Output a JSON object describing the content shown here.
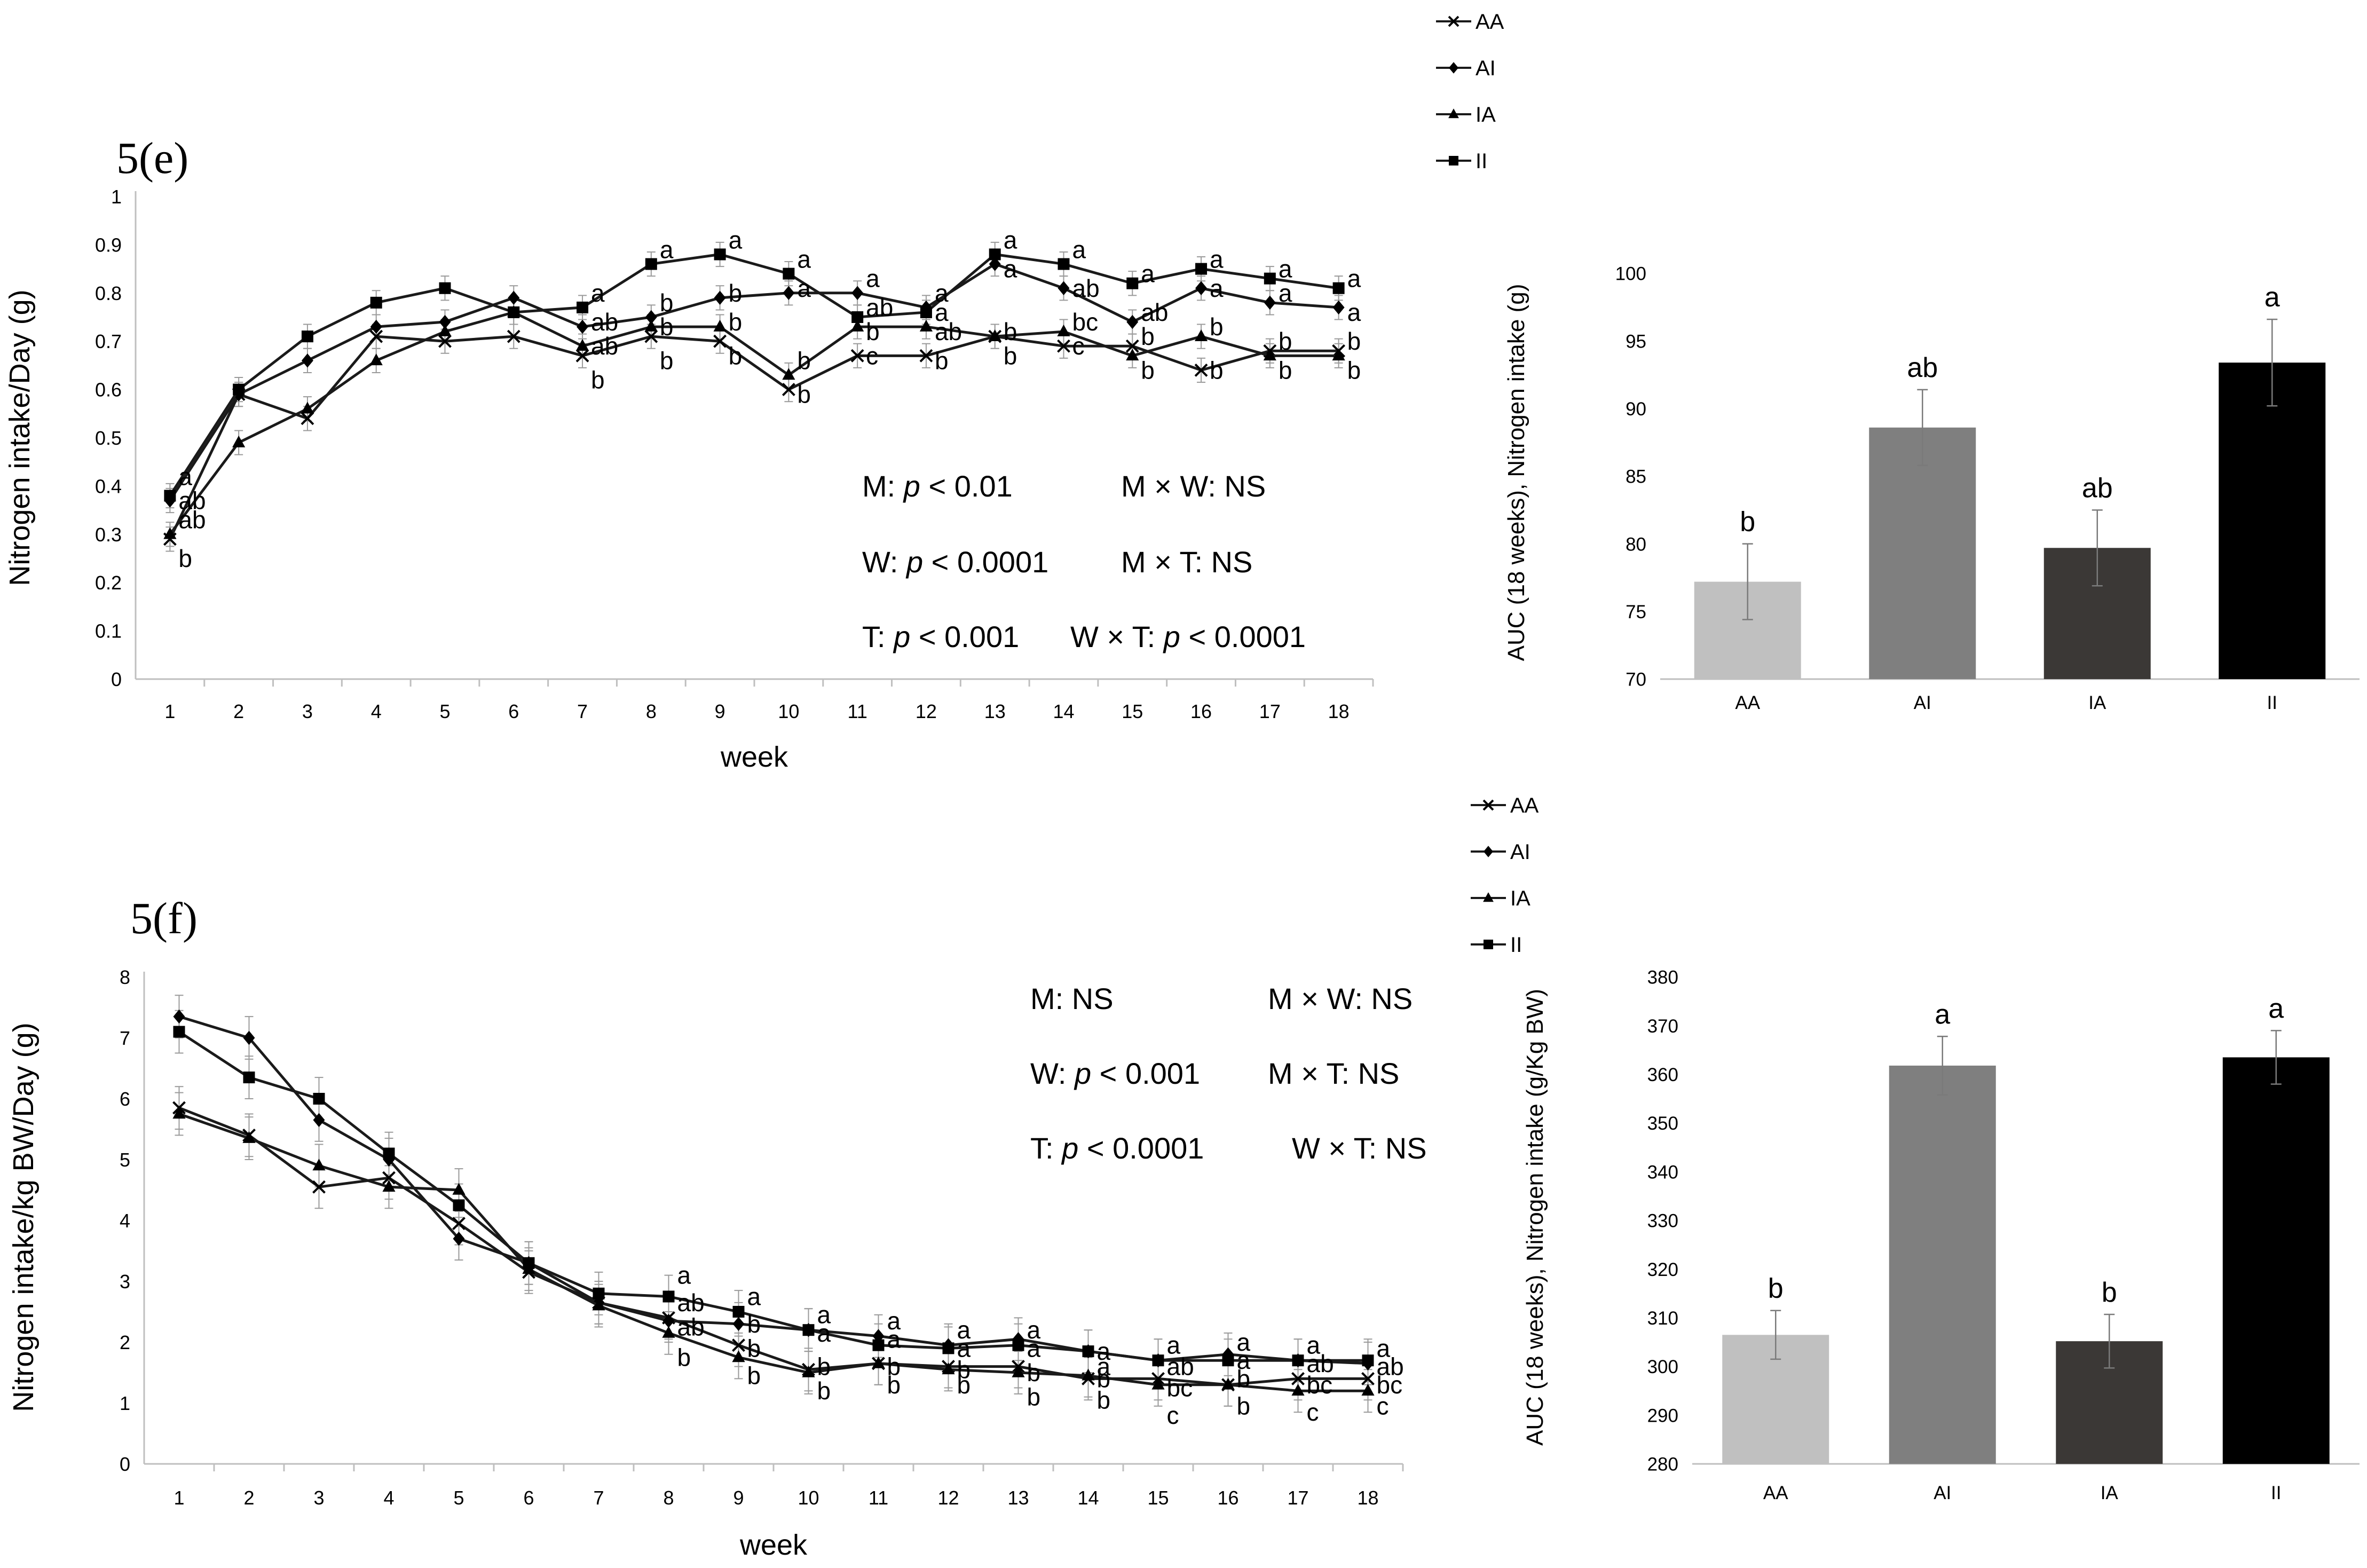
{
  "panels": {
    "e": {
      "label": "5(e)",
      "stats": [
        {
          "pre": "M: ",
          "p": "p",
          "post": " < 0.01"
        },
        {
          "pre": "M × W: NS",
          "p": "",
          "post": ""
        },
        {
          "pre": "W: ",
          "p": "p",
          "post": " < 0.0001"
        },
        {
          "pre": "M × T: NS",
          "p": "",
          "post": ""
        },
        {
          "pre": "T: ",
          "p": "p",
          "post": " < 0.001"
        },
        {
          "pre": "W × T: ",
          "p": "p",
          "post": " < 0.0001"
        }
      ]
    },
    "f": {
      "label": "5(f)",
      "stats": [
        {
          "pre": "M: NS",
          "p": "",
          "post": ""
        },
        {
          "pre": "M × W: NS",
          "p": "",
          "post": ""
        },
        {
          "pre": "W: ",
          "p": "p",
          "post": " < 0.001"
        },
        {
          "pre": "M × T: NS",
          "p": "",
          "post": ""
        },
        {
          "pre": "T: ",
          "p": "p",
          "post": " < 0.0001"
        },
        {
          "pre": "W × T: NS",
          "p": "",
          "post": ""
        }
      ]
    }
  },
  "chart_data": [
    {
      "id": "e-line",
      "type": "line",
      "title": "",
      "xlabel": "week",
      "ylabel": "Nitrogen intake/Day (g)",
      "categories": [
        "1",
        "2",
        "3",
        "4",
        "5",
        "6",
        "7",
        "8",
        "9",
        "10",
        "11",
        "12",
        "13",
        "14",
        "15",
        "16",
        "17",
        "18"
      ],
      "ylim": [
        0,
        1
      ],
      "yticks": [
        "0",
        "0.1",
        "0.2",
        "0.3",
        "0.4",
        "0.5",
        "0.6",
        "0.7",
        "0.8",
        "0.9",
        "1"
      ],
      "legend": "top-right",
      "series": [
        {
          "name": "AA",
          "marker": "x",
          "values": [
            0.29,
            0.59,
            0.54,
            0.71,
            0.7,
            0.71,
            0.67,
            0.71,
            0.7,
            0.6,
            0.67,
            0.67,
            0.71,
            0.69,
            0.69,
            0.64,
            0.68,
            0.68
          ]
        },
        {
          "name": "AI",
          "marker": "diamond",
          "values": [
            0.37,
            0.59,
            0.66,
            0.73,
            0.74,
            0.79,
            0.73,
            0.75,
            0.79,
            0.8,
            0.8,
            0.77,
            0.86,
            0.81,
            0.74,
            0.81,
            0.78,
            0.77
          ]
        },
        {
          "name": "IA",
          "marker": "triangle",
          "values": [
            0.3,
            0.49,
            0.56,
            0.66,
            0.72,
            0.76,
            0.69,
            0.73,
            0.73,
            0.63,
            0.73,
            0.73,
            0.71,
            0.72,
            0.67,
            0.71,
            0.67,
            0.67
          ]
        },
        {
          "name": "II",
          "marker": "square",
          "values": [
            0.38,
            0.6,
            0.71,
            0.78,
            0.81,
            0.76,
            0.77,
            0.86,
            0.88,
            0.84,
            0.75,
            0.76,
            0.88,
            0.86,
            0.82,
            0.85,
            0.83,
            0.81
          ]
        }
      ],
      "annotations": [
        {
          "week": 1,
          "y": 0.42,
          "text": "a"
        },
        {
          "week": 1,
          "y": 0.37,
          "text": "ab"
        },
        {
          "week": 1,
          "y": 0.33,
          "text": "ab"
        },
        {
          "week": 1,
          "y": 0.25,
          "text": "b"
        },
        {
          "week": 7,
          "y": 0.8,
          "text": "a"
        },
        {
          "week": 7,
          "y": 0.74,
          "text": "ab"
        },
        {
          "week": 7,
          "y": 0.69,
          "text": "ab"
        },
        {
          "week": 7,
          "y": 0.62,
          "text": "b"
        },
        {
          "week": 8,
          "y": 0.89,
          "text": "a"
        },
        {
          "week": 8,
          "y": 0.78,
          "text": "b"
        },
        {
          "week": 8,
          "y": 0.73,
          "text": "b"
        },
        {
          "week": 8,
          "y": 0.66,
          "text": "b"
        },
        {
          "week": 9,
          "y": 0.91,
          "text": "a"
        },
        {
          "week": 9,
          "y": 0.8,
          "text": "b"
        },
        {
          "week": 9,
          "y": 0.74,
          "text": "b"
        },
        {
          "week": 9,
          "y": 0.67,
          "text": "b"
        },
        {
          "week": 10,
          "y": 0.87,
          "text": "a"
        },
        {
          "week": 10,
          "y": 0.81,
          "text": "a"
        },
        {
          "week": 10,
          "y": 0.66,
          "text": "b"
        },
        {
          "week": 10,
          "y": 0.59,
          "text": "b"
        },
        {
          "week": 11,
          "y": 0.83,
          "text": "a"
        },
        {
          "week": 11,
          "y": 0.77,
          "text": "ab"
        },
        {
          "week": 11,
          "y": 0.72,
          "text": "b"
        },
        {
          "week": 11,
          "y": 0.67,
          "text": "c"
        },
        {
          "week": 12,
          "y": 0.8,
          "text": "a"
        },
        {
          "week": 12,
          "y": 0.76,
          "text": "a"
        },
        {
          "week": 12,
          "y": 0.72,
          "text": "ab"
        },
        {
          "week": 12,
          "y": 0.66,
          "text": "b"
        },
        {
          "week": 13,
          "y": 0.91,
          "text": "a"
        },
        {
          "week": 13,
          "y": 0.85,
          "text": "a"
        },
        {
          "week": 13,
          "y": 0.72,
          "text": "b"
        },
        {
          "week": 13,
          "y": 0.67,
          "text": "b"
        },
        {
          "week": 14,
          "y": 0.89,
          "text": "a"
        },
        {
          "week": 14,
          "y": 0.81,
          "text": "ab"
        },
        {
          "week": 14,
          "y": 0.74,
          "text": "bc"
        },
        {
          "week": 14,
          "y": 0.69,
          "text": "c"
        },
        {
          "week": 15,
          "y": 0.84,
          "text": "a"
        },
        {
          "week": 15,
          "y": 0.76,
          "text": "ab"
        },
        {
          "week": 15,
          "y": 0.71,
          "text": "b"
        },
        {
          "week": 15,
          "y": 0.64,
          "text": "b"
        },
        {
          "week": 16,
          "y": 0.87,
          "text": "a"
        },
        {
          "week": 16,
          "y": 0.81,
          "text": "a"
        },
        {
          "week": 16,
          "y": 0.73,
          "text": "b"
        },
        {
          "week": 16,
          "y": 0.64,
          "text": "b"
        },
        {
          "week": 17,
          "y": 0.85,
          "text": "a"
        },
        {
          "week": 17,
          "y": 0.8,
          "text": "a"
        },
        {
          "week": 17,
          "y": 0.7,
          "text": "b"
        },
        {
          "week": 17,
          "y": 0.64,
          "text": "b"
        },
        {
          "week": 18,
          "y": 0.83,
          "text": "a"
        },
        {
          "week": 18,
          "y": 0.76,
          "text": "a"
        },
        {
          "week": 18,
          "y": 0.7,
          "text": "b"
        },
        {
          "week": 18,
          "y": 0.64,
          "text": "b"
        }
      ]
    },
    {
      "id": "e-bar",
      "type": "bar",
      "title": "",
      "xlabel": "",
      "ylabel": "AUC (18 weeks), Nitrogen intake (g)",
      "categories": [
        "AA",
        "AI",
        "IA",
        "II"
      ],
      "values": [
        77.2,
        88.6,
        79.7,
        93.4
      ],
      "errors": [
        2.8,
        2.8,
        2.8,
        3.2
      ],
      "labels": [
        "b",
        "ab",
        "ab",
        "a"
      ],
      "colors": [
        "#c0c0c0",
        "#7f7f7f",
        "#3b3836",
        "#000000"
      ],
      "ylim": [
        70,
        100
      ],
      "yticks": [
        "70",
        "75",
        "80",
        "85",
        "90",
        "95",
        "100"
      ]
    },
    {
      "id": "f-line",
      "type": "line",
      "title": "",
      "xlabel": "week",
      "ylabel": "Nitrogen intake/kg BW/Day (g)",
      "categories": [
        "1",
        "2",
        "3",
        "4",
        "5",
        "6",
        "7",
        "8",
        "9",
        "10",
        "11",
        "12",
        "13",
        "14",
        "15",
        "16",
        "17",
        "18"
      ],
      "ylim": [
        0,
        8
      ],
      "yticks": [
        "0",
        "1",
        "2",
        "3",
        "4",
        "5",
        "6",
        "7",
        "8"
      ],
      "legend": "top-right",
      "series": [
        {
          "name": "AA",
          "marker": "x",
          "values": [
            5.85,
            5.4,
            4.55,
            4.7,
            3.95,
            3.15,
            2.65,
            2.4,
            1.95,
            1.55,
            1.65,
            1.6,
            1.6,
            1.4,
            1.4,
            1.3,
            1.4,
            1.4
          ]
        },
        {
          "name": "AI",
          "marker": "diamond",
          "values": [
            7.35,
            7.0,
            5.65,
            5.0,
            3.7,
            3.3,
            2.65,
            2.35,
            2.3,
            2.2,
            2.1,
            1.95,
            2.05,
            1.85,
            1.7,
            1.8,
            1.7,
            1.65
          ]
        },
        {
          "name": "IA",
          "marker": "triangle",
          "values": [
            5.75,
            5.35,
            4.9,
            4.55,
            4.5,
            3.2,
            2.6,
            2.15,
            1.75,
            1.5,
            1.65,
            1.55,
            1.5,
            1.45,
            1.3,
            1.3,
            1.2,
            1.2
          ]
        },
        {
          "name": "II",
          "marker": "square",
          "values": [
            7.1,
            6.35,
            6.0,
            5.1,
            4.25,
            3.3,
            2.8,
            2.75,
            2.5,
            2.2,
            1.95,
            1.9,
            1.95,
            1.85,
            1.7,
            1.7,
            1.7,
            1.7
          ]
        }
      ],
      "annotations": [
        {
          "week": 8,
          "y": 3.1,
          "text": "a"
        },
        {
          "week": 8,
          "y": 2.65,
          "text": "ab"
        },
        {
          "week": 8,
          "y": 2.25,
          "text": "ab"
        },
        {
          "week": 8,
          "y": 1.75,
          "text": "b"
        },
        {
          "week": 9,
          "y": 2.75,
          "text": "a"
        },
        {
          "week": 9,
          "y": 2.3,
          "text": "b"
        },
        {
          "week": 9,
          "y": 1.9,
          "text": "b"
        },
        {
          "week": 9,
          "y": 1.45,
          "text": "b"
        },
        {
          "week": 10,
          "y": 2.45,
          "text": "a"
        },
        {
          "week": 10,
          "y": 2.15,
          "text": "a"
        },
        {
          "week": 10,
          "y": 1.6,
          "text": "b"
        },
        {
          "week": 10,
          "y": 1.2,
          "text": "b"
        },
        {
          "week": 11,
          "y": 2.35,
          "text": "a"
        },
        {
          "week": 11,
          "y": 2.05,
          "text": "a"
        },
        {
          "week": 11,
          "y": 1.6,
          "text": "b"
        },
        {
          "week": 11,
          "y": 1.3,
          "text": "b"
        },
        {
          "week": 12,
          "y": 2.2,
          "text": "a"
        },
        {
          "week": 12,
          "y": 1.9,
          "text": "a"
        },
        {
          "week": 12,
          "y": 1.55,
          "text": "b"
        },
        {
          "week": 12,
          "y": 1.3,
          "text": "b"
        },
        {
          "week": 13,
          "y": 2.2,
          "text": "a"
        },
        {
          "week": 13,
          "y": 1.9,
          "text": "a"
        },
        {
          "week": 13,
          "y": 1.5,
          "text": "b"
        },
        {
          "week": 13,
          "y": 1.1,
          "text": "b"
        },
        {
          "week": 14,
          "y": 1.85,
          "text": "a"
        },
        {
          "week": 14,
          "y": 1.6,
          "text": "a"
        },
        {
          "week": 14,
          "y": 1.4,
          "text": "b"
        },
        {
          "week": 14,
          "y": 1.05,
          "text": "b"
        },
        {
          "week": 15,
          "y": 1.95,
          "text": "a"
        },
        {
          "week": 15,
          "y": 1.6,
          "text": "ab"
        },
        {
          "week": 15,
          "y": 1.25,
          "text": "bc"
        },
        {
          "week": 15,
          "y": 0.8,
          "text": "c"
        },
        {
          "week": 16,
          "y": 2.0,
          "text": "a"
        },
        {
          "week": 16,
          "y": 1.7,
          "text": "a"
        },
        {
          "week": 16,
          "y": 1.4,
          "text": "b"
        },
        {
          "week": 16,
          "y": 0.95,
          "text": "b"
        },
        {
          "week": 17,
          "y": 1.95,
          "text": "a"
        },
        {
          "week": 17,
          "y": 1.65,
          "text": "ab"
        },
        {
          "week": 17,
          "y": 1.3,
          "text": "bc"
        },
        {
          "week": 17,
          "y": 0.85,
          "text": "c"
        },
        {
          "week": 18,
          "y": 1.9,
          "text": "a"
        },
        {
          "week": 18,
          "y": 1.6,
          "text": "ab"
        },
        {
          "week": 18,
          "y": 1.3,
          "text": "bc"
        },
        {
          "week": 18,
          "y": 0.95,
          "text": "c"
        }
      ]
    },
    {
      "id": "f-bar",
      "type": "bar",
      "title": "",
      "xlabel": "",
      "ylabel": "AUC (18 weeks), Nitrogen intake (g/Kg BW)",
      "categories": [
        "AA",
        "AI",
        "IA",
        "II"
      ],
      "values": [
        306.5,
        361.8,
        305.2,
        363.5
      ],
      "errors": [
        5,
        6,
        5.5,
        5.5
      ],
      "labels": [
        "b",
        "a",
        "b",
        "a"
      ],
      "colors": [
        "#c0c0c0",
        "#7f7f7f",
        "#3b3836",
        "#000000"
      ],
      "ylim": [
        280,
        380
      ],
      "yticks": [
        "280",
        "290",
        "300",
        "310",
        "320",
        "330",
        "340",
        "350",
        "360",
        "370",
        "380"
      ]
    }
  ]
}
